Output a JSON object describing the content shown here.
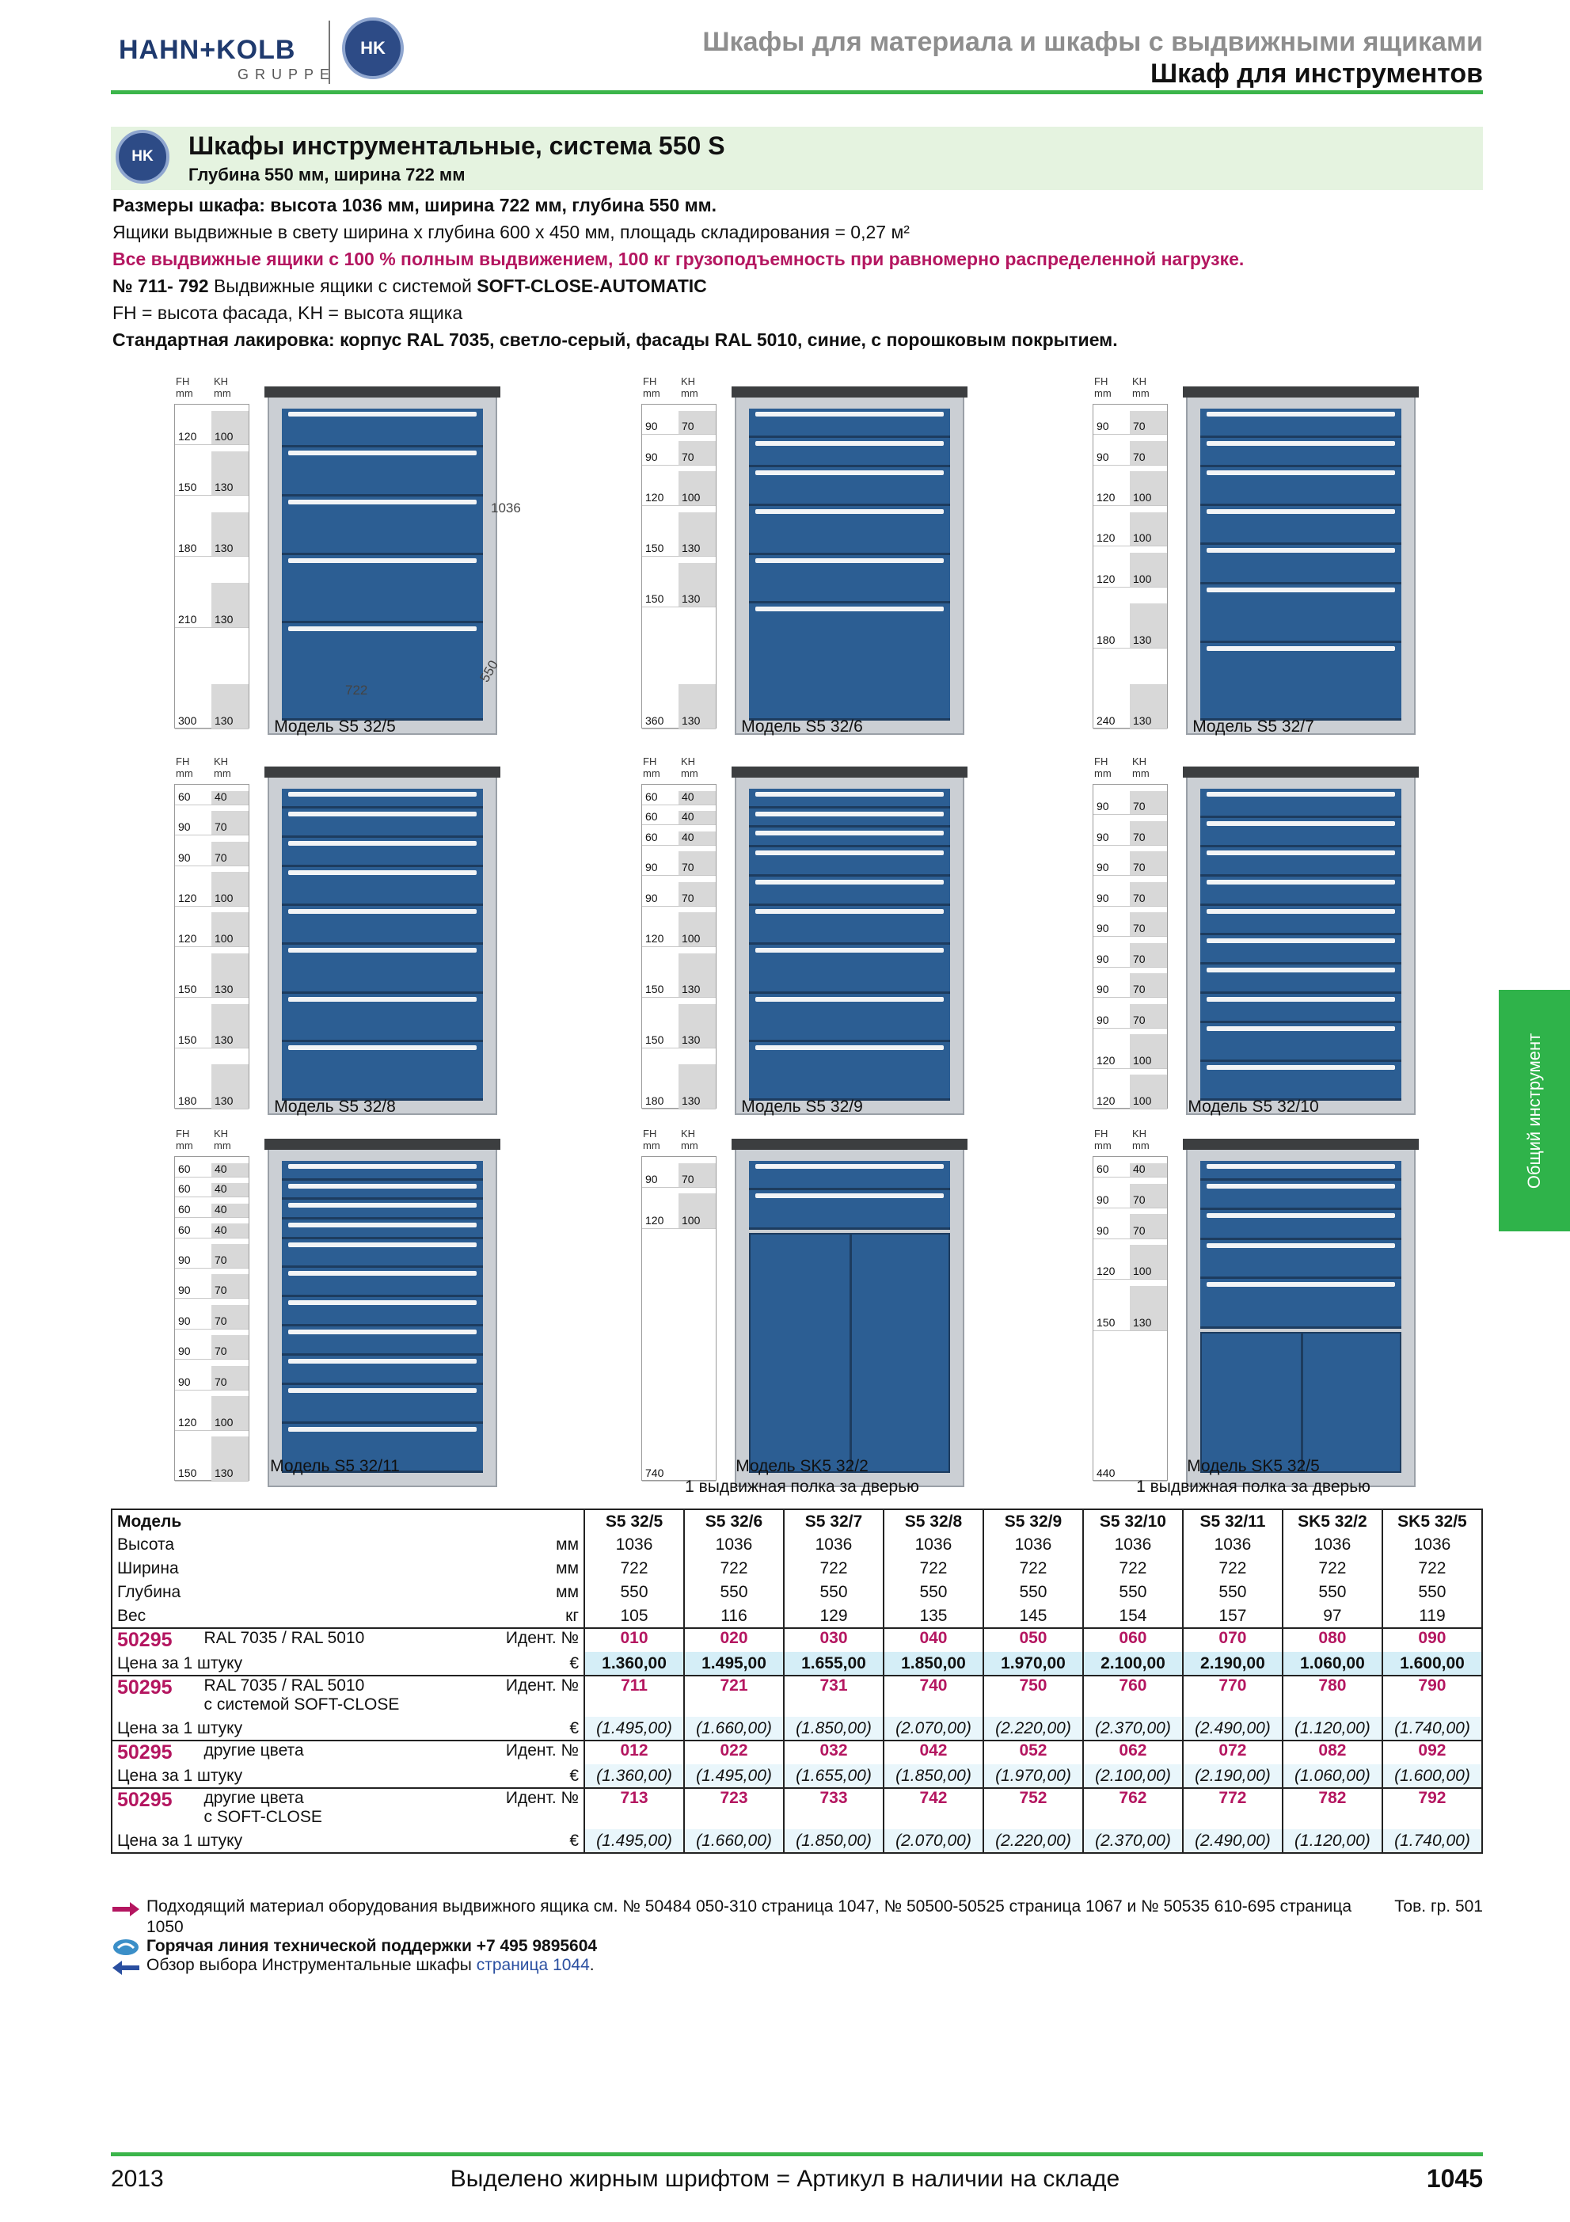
{
  "header": {
    "logo_text": "HAHN+KOLB",
    "logo_sub": "GRUPPE",
    "badge": "HK",
    "category": "Шкафы для материала и шкафы с выдвижными ящиками",
    "subcategory": "Шкаф для инструментов"
  },
  "title": {
    "main": "Шкафы инструментальные, система 550 S",
    "sub": "Глубина 550 мм, ширина 722 мм"
  },
  "description": {
    "line1": "Размеры шкафа: высота 1036 мм, ширина 722 мм, глубина 550 мм.",
    "line2": "Ящики выдвижные в свету ширина x глубина 600 x 450 мм, площадь складирования = 0,27 м²",
    "line3": "Все выдвижные ящики с 100 % полным выдвижением, 100 кг грузоподъемность при равномерно распределенной нагрузке.",
    "line4_num": "№ 711- 792",
    "line4_text": " Выдвижные ящики с системой ",
    "line4_bold": "SOFT-CLOSE-AUTOMATIC",
    "line5": "FH = высота фасада, KH = высота ящика",
    "line6": "Стандартная лакировка: корпус RAL 7035, светло-серый, фасады  RAL 5010, синие, с порошковым покрытием."
  },
  "cabinets": [
    {
      "caption": "Модель S5 32/5",
      "caption2": "",
      "rows": [
        [
          "120",
          "100"
        ],
        [
          "150",
          "130"
        ],
        [
          "180",
          "130"
        ],
        [
          "210",
          "130"
        ],
        [
          "300",
          "130"
        ]
      ],
      "door": ""
    },
    {
      "caption": "Модель S5 32/6",
      "caption2": "",
      "rows": [
        [
          "90",
          "70"
        ],
        [
          "90",
          "70"
        ],
        [
          "120",
          "100"
        ],
        [
          "150",
          "130"
        ],
        [
          "150",
          "130"
        ],
        [
          "360",
          "130"
        ]
      ],
      "door": ""
    },
    {
      "caption": "Модель S5 32/7",
      "caption2": "",
      "rows": [
        [
          "90",
          "70"
        ],
        [
          "90",
          "70"
        ],
        [
          "120",
          "100"
        ],
        [
          "120",
          "100"
        ],
        [
          "120",
          "100"
        ],
        [
          "180",
          "130"
        ],
        [
          "240",
          "130"
        ]
      ],
      "door": ""
    },
    {
      "caption": "Модель S5 32/8",
      "caption2": "",
      "rows": [
        [
          "60",
          "40"
        ],
        [
          "90",
          "70"
        ],
        [
          "90",
          "70"
        ],
        [
          "120",
          "100"
        ],
        [
          "120",
          "100"
        ],
        [
          "150",
          "130"
        ],
        [
          "150",
          "130"
        ],
        [
          "180",
          "130"
        ]
      ],
      "door": ""
    },
    {
      "caption": "Модель S5 32/9",
      "caption2": "",
      "rows": [
        [
          "60",
          "40"
        ],
        [
          "60",
          "40"
        ],
        [
          "60",
          "40"
        ],
        [
          "90",
          "70"
        ],
        [
          "90",
          "70"
        ],
        [
          "120",
          "100"
        ],
        [
          "150",
          "130"
        ],
        [
          "150",
          "130"
        ],
        [
          "180",
          "130"
        ]
      ],
      "door": ""
    },
    {
      "caption": "Модель S5 32/10",
      "caption2": "",
      "rows": [
        [
          "90",
          "70"
        ],
        [
          "90",
          "70"
        ],
        [
          "90",
          "70"
        ],
        [
          "90",
          "70"
        ],
        [
          "90",
          "70"
        ],
        [
          "90",
          "70"
        ],
        [
          "90",
          "70"
        ],
        [
          "90",
          "70"
        ],
        [
          "120",
          "100"
        ],
        [
          "120",
          "100"
        ]
      ],
      "door": ""
    },
    {
      "caption": "Модель S5 32/11",
      "caption2": "",
      "rows": [
        [
          "60",
          "40"
        ],
        [
          "60",
          "40"
        ],
        [
          "60",
          "40"
        ],
        [
          "60",
          "40"
        ],
        [
          "90",
          "70"
        ],
        [
          "90",
          "70"
        ],
        [
          "90",
          "70"
        ],
        [
          "90",
          "70"
        ],
        [
          "90",
          "70"
        ],
        [
          "120",
          "100"
        ],
        [
          "150",
          "130"
        ]
      ],
      "door": ""
    },
    {
      "caption": "Модель SK5 32/2",
      "caption2": "1 выдвижная полка за дверью",
      "rows": [
        [
          "90",
          "70"
        ],
        [
          "120",
          "100"
        ]
      ],
      "door": "740"
    },
    {
      "caption": "Модель SK5 32/5",
      "caption2": "1 выдвижная полка за дверью",
      "rows": [
        [
          "60",
          "40"
        ],
        [
          "90",
          "70"
        ],
        [
          "90",
          "70"
        ],
        [
          "120",
          "100"
        ],
        [
          "150",
          "130"
        ]
      ],
      "door": "440"
    }
  ],
  "fhkh_labels": {
    "fh": "FH",
    "kh": "KH",
    "unit": "mm"
  },
  "dims": {
    "height": "1036",
    "width": "722",
    "depth": "550"
  },
  "side_tab": "Общий инструмент",
  "table": {
    "model_label": "Модель",
    "models": [
      "S5 32/5",
      "S5 32/6",
      "S5 32/7",
      "S5 32/8",
      "S5 32/9",
      "S5 32/10",
      "S5 32/11",
      "SK5 32/2",
      "SK5 32/5"
    ],
    "spec_rows": [
      {
        "label": "Высота",
        "unit": "мм",
        "values": [
          "1036",
          "1036",
          "1036",
          "1036",
          "1036",
          "1036",
          "1036",
          "1036",
          "1036"
        ]
      },
      {
        "label": "Ширина",
        "unit": "мм",
        "values": [
          "722",
          "722",
          "722",
          "722",
          "722",
          "722",
          "722",
          "722",
          "722"
        ]
      },
      {
        "label": "Глубина",
        "unit": "мм",
        "values": [
          "550",
          "550",
          "550",
          "550",
          "550",
          "550",
          "550",
          "550",
          "550"
        ]
      },
      {
        "label": "Вес",
        "unit": "кг",
        "values": [
          "105",
          "116",
          "129",
          "135",
          "145",
          "154",
          "157",
          "97",
          "119"
        ]
      }
    ],
    "groups": [
      {
        "product": "50295",
        "desc1": "RAL 7035 / RAL 5010",
        "desc2": "",
        "ident_label": "Идент. №",
        "ids": [
          "010",
          "020",
          "030",
          "040",
          "050",
          "060",
          "070",
          "080",
          "090"
        ],
        "price_label": "Цена за 1 штуку",
        "currency": "€",
        "prices": [
          "1.360,00",
          "1.495,00",
          "1.655,00",
          "1.850,00",
          "1.970,00",
          "2.100,00",
          "2.190,00",
          "1.060,00",
          "1.600,00"
        ],
        "highlight": true
      },
      {
        "product": "50295",
        "desc1": "RAL 7035 / RAL 5010",
        "desc2": "с системой SOFT-CLOSE",
        "ident_label": "Идент. №",
        "ids": [
          "711",
          "721",
          "731",
          "740",
          "750",
          "760",
          "770",
          "780",
          "790"
        ],
        "price_label": "Цена за 1 штуку",
        "currency": "€",
        "prices": [
          "(1.495,00)",
          "(1.660,00)",
          "(1.850,00)",
          "(2.070,00)",
          "(2.220,00)",
          "(2.370,00)",
          "(2.490,00)",
          "(1.120,00)",
          "(1.740,00)"
        ],
        "highlight": false
      },
      {
        "product": "50295",
        "desc1": "другие цвета",
        "desc2": "",
        "ident_label": "Идент. №",
        "ids": [
          "012",
          "022",
          "032",
          "042",
          "052",
          "062",
          "072",
          "082",
          "092"
        ],
        "price_label": "Цена за 1 штуку",
        "currency": "€",
        "prices": [
          "(1.360,00)",
          "(1.495,00)",
          "(1.655,00)",
          "(1.850,00)",
          "(1.970,00)",
          "(2.100,00)",
          "(2.190,00)",
          "(1.060,00)",
          "(1.600,00)"
        ],
        "highlight": false
      },
      {
        "product": "50295",
        "desc1": "другие цвета",
        "desc2": "с SOFT-CLOSE",
        "ident_label": "Идент. №",
        "ids": [
          "713",
          "723",
          "733",
          "742",
          "752",
          "762",
          "772",
          "782",
          "792"
        ],
        "price_label": "Цена за 1 штуку",
        "currency": "€",
        "prices": [
          "(1.495,00)",
          "(1.660,00)",
          "(1.850,00)",
          "(2.070,00)",
          "(2.220,00)",
          "(2.370,00)",
          "(2.490,00)",
          "(1.120,00)",
          "(1.740,00)"
        ],
        "highlight": false
      }
    ]
  },
  "notes": {
    "n1": "Подходящий материал оборудования выдвижного ящика см. № 50484 050-310 страница 1047, № 50500-50525 страница 1067 и № 50535 610-695 страница",
    "n1b": "1050",
    "n1_group": "Тов. гр. 501",
    "n2": "Горячая линия технической поддержки +7 495 9895604",
    "n3_text": "Обзор выбора Инструментальные шкафы ",
    "n3_link": "страница 1044",
    "n3_end": "."
  },
  "footer": {
    "year": "2013",
    "legend": "Выделено жирным шрифтом = Артикул в наличии на складе",
    "page": "1045"
  },
  "colors": {
    "accent_green": "#3bb54a",
    "drawer_blue": "#2c5e93",
    "id_red": "#b41660",
    "price_bg": "#d5eef7"
  }
}
